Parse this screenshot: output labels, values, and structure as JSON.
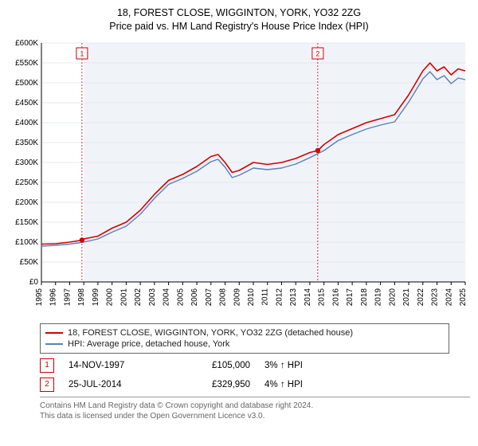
{
  "title_line1": "18, FOREST CLOSE, WIGGINTON, YORK, YO32 2ZG",
  "title_line2": "Price paid vs. HM Land Registry's House Price Index (HPI)",
  "chart": {
    "type": "line",
    "background_color": "#ffffff",
    "plot_bg": "#f0f4f9",
    "plot_bg_x_start": 1998,
    "plot_bg_x_end": 2025,
    "grid_color": "#e5e9ef",
    "axis_color": "#000000",
    "axis_fontsize": 10,
    "xlim": [
      1995,
      2025
    ],
    "ylim": [
      0,
      600
    ],
    "ytick_step": 50,
    "yticks": [
      "£0",
      "£50K",
      "£100K",
      "£150K",
      "£200K",
      "£250K",
      "£300K",
      "£350K",
      "£400K",
      "£450K",
      "£500K",
      "£550K",
      "£600K"
    ],
    "xticks": [
      "1995",
      "1996",
      "1997",
      "1998",
      "1999",
      "2000",
      "2001",
      "2002",
      "2003",
      "2004",
      "2005",
      "2006",
      "2007",
      "2008",
      "2009",
      "2010",
      "2011",
      "2012",
      "2013",
      "2014",
      "2015",
      "2016",
      "2017",
      "2018",
      "2019",
      "2020",
      "2021",
      "2022",
      "2023",
      "2024",
      "2025"
    ],
    "series": [
      {
        "name": "property",
        "label": "18, FOREST CLOSE, WIGGINTON, YORK, YO32 2ZG (detached house)",
        "color": "#d40000",
        "width": 1.6,
        "points": [
          [
            1995,
            95
          ],
          [
            1996,
            96
          ],
          [
            1997,
            100
          ],
          [
            1997.87,
            105
          ],
          [
            1998,
            108
          ],
          [
            1999,
            115
          ],
          [
            2000,
            135
          ],
          [
            2001,
            150
          ],
          [
            2002,
            180
          ],
          [
            2003,
            220
          ],
          [
            2004,
            255
          ],
          [
            2005,
            270
          ],
          [
            2006,
            290
          ],
          [
            2007,
            315
          ],
          [
            2007.5,
            320
          ],
          [
            2008,
            300
          ],
          [
            2008.5,
            275
          ],
          [
            2009,
            280
          ],
          [
            2010,
            300
          ],
          [
            2011,
            295
          ],
          [
            2012,
            300
          ],
          [
            2013,
            310
          ],
          [
            2014,
            325
          ],
          [
            2014.56,
            330
          ],
          [
            2015,
            345
          ],
          [
            2016,
            370
          ],
          [
            2017,
            385
          ],
          [
            2018,
            400
          ],
          [
            2019,
            410
          ],
          [
            2020,
            420
          ],
          [
            2021,
            470
          ],
          [
            2022,
            530
          ],
          [
            2022.5,
            550
          ],
          [
            2023,
            530
          ],
          [
            2023.5,
            540
          ],
          [
            2024,
            520
          ],
          [
            2024.5,
            535
          ],
          [
            2025,
            530
          ]
        ]
      },
      {
        "name": "hpi",
        "label": "HPI: Average price, detached house, York",
        "color": "#5b7fb8",
        "width": 1.4,
        "points": [
          [
            1995,
            90
          ],
          [
            1996,
            92
          ],
          [
            1997,
            95
          ],
          [
            1998,
            100
          ],
          [
            1999,
            108
          ],
          [
            2000,
            125
          ],
          [
            2001,
            140
          ],
          [
            2002,
            170
          ],
          [
            2003,
            210
          ],
          [
            2004,
            245
          ],
          [
            2005,
            260
          ],
          [
            2006,
            278
          ],
          [
            2007,
            302
          ],
          [
            2007.5,
            308
          ],
          [
            2008,
            288
          ],
          [
            2008.5,
            262
          ],
          [
            2009,
            268
          ],
          [
            2010,
            286
          ],
          [
            2011,
            282
          ],
          [
            2012,
            286
          ],
          [
            2013,
            296
          ],
          [
            2014,
            312
          ],
          [
            2015,
            330
          ],
          [
            2016,
            355
          ],
          [
            2017,
            370
          ],
          [
            2018,
            384
          ],
          [
            2019,
            394
          ],
          [
            2020,
            402
          ],
          [
            2021,
            452
          ],
          [
            2022,
            510
          ],
          [
            2022.5,
            528
          ],
          [
            2023,
            508
          ],
          [
            2023.5,
            518
          ],
          [
            2024,
            498
          ],
          [
            2024.5,
            512
          ],
          [
            2025,
            508
          ]
        ]
      }
    ],
    "sale_markers": [
      {
        "n": "1",
        "x": 1997.87,
        "y": 105,
        "vline_color": "#cc0000"
      },
      {
        "n": "2",
        "x": 2014.56,
        "y": 330,
        "vline_color": "#cc0000"
      }
    ],
    "marker_box": {
      "border": "#cc0000",
      "text_color": "#cc0000",
      "bg": "#ffffff",
      "size": 14,
      "fontsize": 9
    },
    "sale_dot": {
      "color": "#d40000",
      "radius": 3.2
    }
  },
  "legend": {
    "rows": [
      {
        "color": "#d40000",
        "text": "18, FOREST CLOSE, WIGGINTON, YORK, YO32 2ZG (detached house)"
      },
      {
        "color": "#5b7fb8",
        "text": "HPI: Average price, detached house, York"
      }
    ]
  },
  "sales": [
    {
      "n": "1",
      "date": "14-NOV-1997",
      "price": "£105,000",
      "delta": "3% ↑ HPI"
    },
    {
      "n": "2",
      "date": "25-JUL-2014",
      "price": "£329,950",
      "delta": "4% ↑ HPI"
    }
  ],
  "footer_line1": "Contains HM Land Registry data © Crown copyright and database right 2024.",
  "footer_line2": "This data is licensed under the Open Government Licence v3.0."
}
